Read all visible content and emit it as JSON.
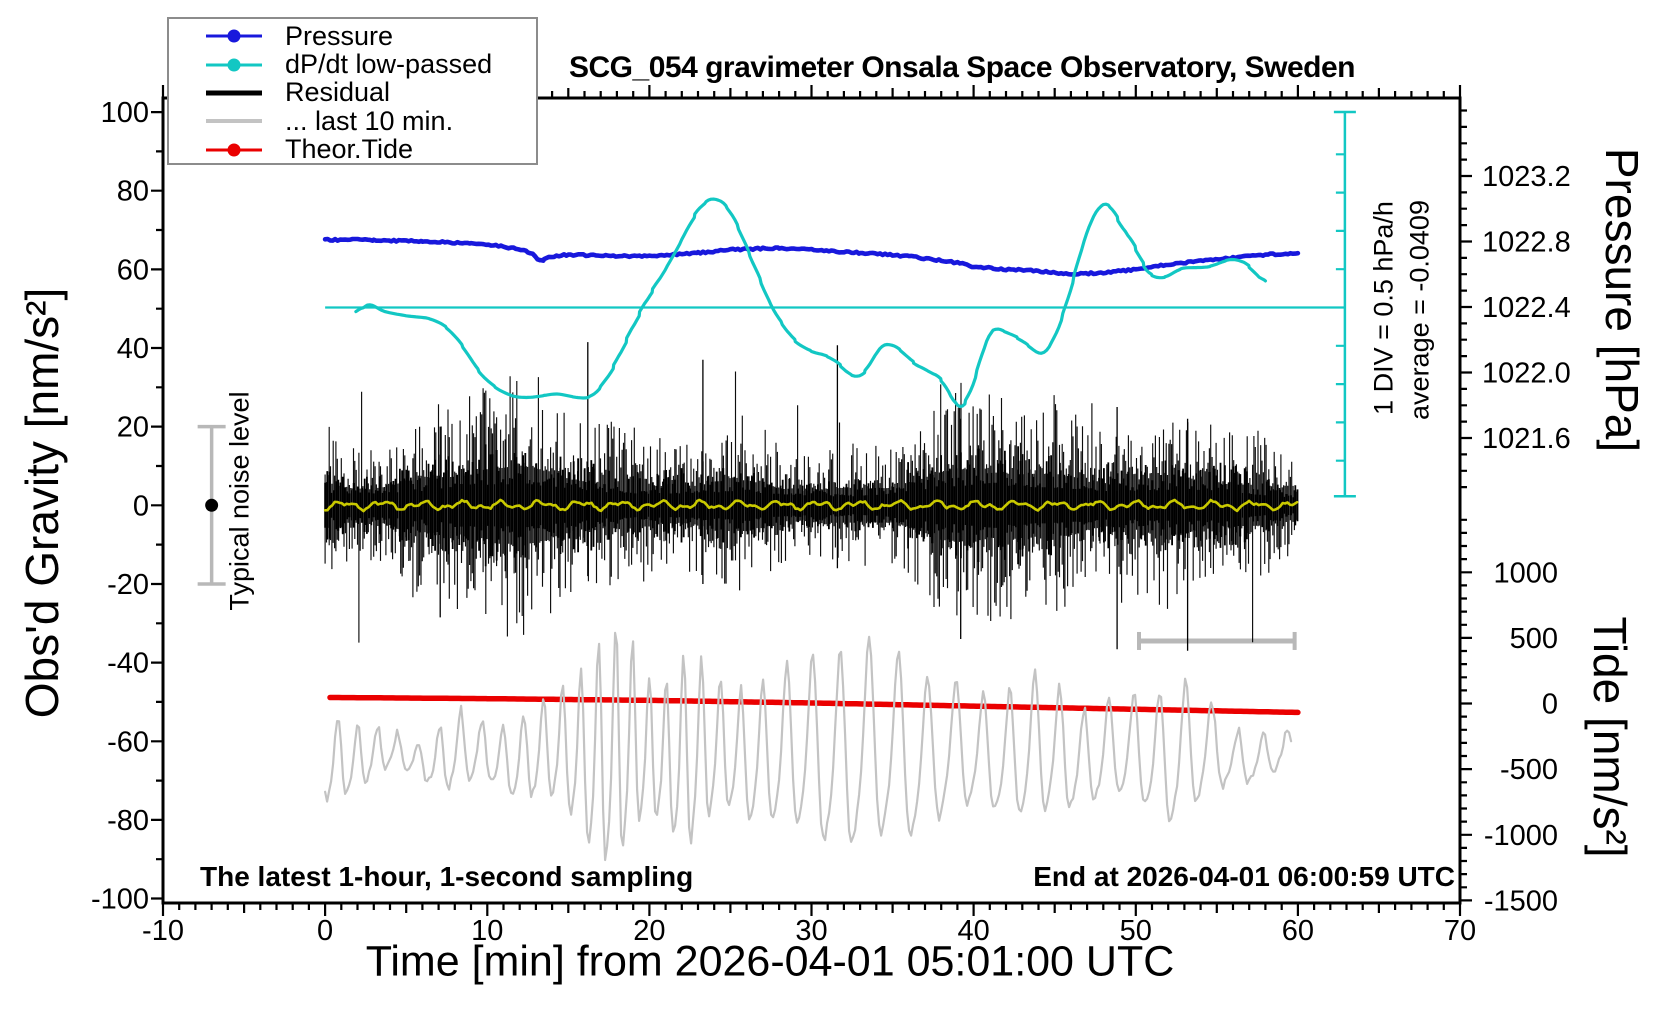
{
  "title": "SCG_054 gravimeter Onsala Space Observatory, Sweden",
  "annotations": {
    "typical_noise_level": "Typical noise level",
    "div_scale": "1 DIV = 0.5 hPa/h",
    "average": "average = -0.0409",
    "sampling_note": "The latest 1-hour, 1-second sampling",
    "end_note": "End at 2026-04-01 06:00:59 UTC"
  },
  "legend": {
    "items": [
      {
        "label": "Pressure",
        "color": "#1818dc",
        "marker": "dot",
        "line_width": 3
      },
      {
        "label": "dP/dt low-passed",
        "color": "#12c7c3",
        "marker": "dot",
        "line_width": 3
      },
      {
        "label": "Residual",
        "color": "#000000",
        "marker": "none",
        "line_width": 5
      },
      {
        "label": "... last 10 min.",
        "color": "#c3c3c3",
        "marker": "none",
        "line_width": 4
      },
      {
        "label": "Theor.Tide",
        "color": "#ea0000",
        "marker": "dot",
        "line_width": 3
      }
    ]
  },
  "chart_data": {
    "type": "line",
    "title": "SCG_054 gravimeter Onsala Space Observatory, Sweden",
    "xlabel": "Time [min] from 2026-04-01 05:01:00 UTC",
    "x_range": [
      -10,
      70
    ],
    "x_major_ticks": [
      -10,
      0,
      10,
      20,
      30,
      40,
      50,
      60,
      70
    ],
    "x_minor_step": 1,
    "left_axis": {
      "label": "Obs'd Gravity [nm/s²]",
      "range": [
        -100,
        100
      ],
      "major_ticks": [
        100,
        80,
        60,
        40,
        20,
        0,
        -20,
        -40,
        -60,
        -80,
        -100
      ],
      "minor_step": 10
    },
    "right_axis_pressure": {
      "label": "Pressure [hPa]",
      "tick_labels": [
        "1023.2",
        "1022.8",
        "1022.4",
        "1022.0",
        "1021.6"
      ],
      "tick_values": [
        1023.2,
        1022.8,
        1022.4,
        1022.0,
        1021.6
      ],
      "minor_step": 0.1,
      "visible_range": [
        1021.25,
        1023.55
      ]
    },
    "right_axis_tide": {
      "label": "Tide [nm/s²]",
      "tick_labels": [
        "1000",
        "500",
        "0",
        "-500",
        "-1000",
        "-1500"
      ],
      "tick_values": [
        1000,
        500,
        0,
        -500,
        -1000,
        -1500
      ],
      "minor_step": 100,
      "visible_range": [
        -1510,
        1460
      ]
    },
    "series": {
      "pressure_hPa": {
        "t": [
          0,
          3,
          6,
          9,
          11,
          12.5,
          13.1,
          13.3,
          13.5,
          15,
          18,
          20,
          23,
          25,
          28,
          30,
          33,
          36,
          39,
          39.6,
          39.75,
          40,
          42,
          44,
          46,
          48,
          50,
          52,
          54,
          56,
          58,
          60
        ],
        "v": [
          1022.81,
          1022.81,
          1022.8,
          1022.79,
          1022.77,
          1022.74,
          1022.71,
          1022.655,
          1022.705,
          1022.72,
          1022.71,
          1022.71,
          1022.73,
          1022.75,
          1022.76,
          1022.75,
          1022.73,
          1022.71,
          1022.67,
          1022.665,
          1022.635,
          1022.645,
          1022.63,
          1022.62,
          1022.6,
          1022.61,
          1022.63,
          1022.66,
          1022.68,
          1022.7,
          1022.72,
          1022.73
        ]
      },
      "dpdt_hPa_per_h": {
        "t": [
          1.9,
          2.6,
          3.5,
          5,
          6.5,
          7.5,
          8.5,
          9.5,
          10.5,
          11.5,
          12.5,
          13.5,
          14.3,
          15.3,
          16.3,
          17,
          17.8,
          18.6,
          19.4,
          20.2,
          21.1,
          22,
          22.8,
          23.5,
          24.1,
          24.8,
          25.5,
          26.2,
          26.9,
          27.5,
          28.2,
          29,
          30,
          31,
          31.8,
          32.5,
          33.3,
          34.2,
          34.8,
          35.5,
          36.3,
          37.2,
          38,
          38.6,
          39,
          39.5,
          40.2,
          40.8,
          41.2,
          41.9,
          42.7,
          43.4,
          44.2,
          44.8,
          45.5,
          46.2,
          46.8,
          47.4,
          48,
          48.4,
          48.9,
          49.5,
          50,
          50.5,
          51,
          51.8,
          52.8,
          53.8,
          54.6,
          55.6,
          56.2,
          57,
          57.6,
          58
        ],
        "v": [
          -0.12,
          0.08,
          -0.05,
          -0.11,
          -0.14,
          -0.25,
          -0.5,
          -0.85,
          -1.05,
          -1.16,
          -1.18,
          -1.15,
          -1.12,
          -1.17,
          -1.19,
          -1.05,
          -0.78,
          -0.42,
          -0.07,
          0.23,
          0.53,
          0.88,
          1.22,
          1.4,
          1.44,
          1.33,
          1.05,
          0.68,
          0.33,
          0.01,
          -0.22,
          -0.45,
          -0.58,
          -0.63,
          -0.75,
          -0.92,
          -0.87,
          -0.5,
          -0.46,
          -0.55,
          -0.73,
          -0.83,
          -0.92,
          -1.15,
          -1.34,
          -1.28,
          -0.86,
          -0.38,
          -0.25,
          -0.31,
          -0.39,
          -0.5,
          -0.64,
          -0.5,
          -0.12,
          0.4,
          0.88,
          1.23,
          1.37,
          1.38,
          1.13,
          0.95,
          0.79,
          0.52,
          0.4,
          0.38,
          0.52,
          0.52,
          0.53,
          0.62,
          0.64,
          0.55,
          0.38,
          0.32
        ]
      },
      "theor_tide_nms2": {
        "t": [
          0.3,
          10,
          20,
          30,
          40,
          50,
          60
        ],
        "v": [
          46,
          37,
          24,
          4,
          -20,
          -44,
          -68
        ]
      },
      "residual": {
        "description": "1-second residual noise centred on 0 nm/s²",
        "seed": 20260401,
        "typical_range_nms2": [
          -25,
          25
        ],
        "extreme_range_nms2": [
          -41,
          42
        ],
        "notable_spikes_t_gmin_gmax": [
          [
            7.1,
            -28.5,
            20
          ],
          [
            16.2,
            -18,
            41.5
          ],
          [
            23.3,
            -20,
            37
          ],
          [
            31.6,
            -16,
            40.7
          ],
          [
            39.2,
            -34,
            22
          ],
          [
            48.85,
            -36.6,
            25
          ],
          [
            53.2,
            -37,
            22
          ]
        ]
      },
      "residual_lowpass": {
        "color": "#c9c900",
        "center_nms2": 0,
        "amplitude_nms2": 1.5
      },
      "last10": {
        "description": "residual of the last 10 minutes, stretched over the hour",
        "seed": 99,
        "center_nms2": -64,
        "typical_amplitude_nms2": [
          8,
          30
        ]
      }
    },
    "dpdt_reference": {
      "zero_line_gravity": 50.3,
      "div_hPa_per_h": 0.5,
      "scale_t": 62.9,
      "scale_gravity_top": 100,
      "scale_gravity_bottom": 2.3
    },
    "noise_errorbar": {
      "t": -7,
      "gravity_range": [
        -20,
        20
      ]
    },
    "last10_scalebar": {
      "t_range": [
        50.2,
        59.8
      ],
      "gravity": -34.5
    }
  }
}
